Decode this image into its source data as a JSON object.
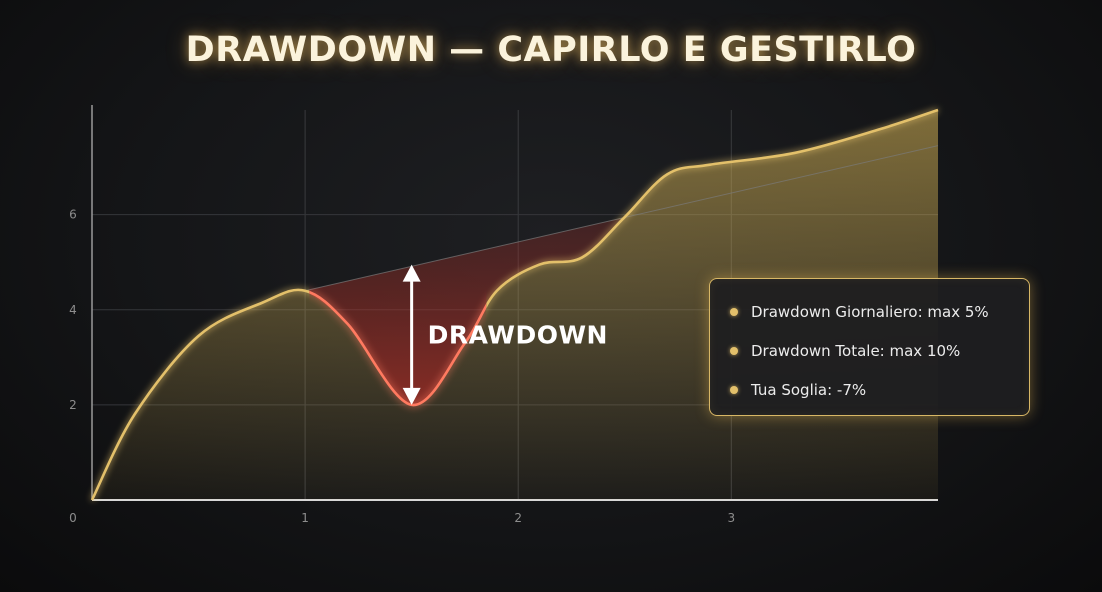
{
  "chart_data": {
    "type": "area",
    "title": "DRAWDOWN — CAPIRLO E GESTIRLO",
    "xlabel": "",
    "ylabel": "",
    "xlim": [
      0,
      3.97
    ],
    "ylim": [
      0,
      8.2
    ],
    "x_ticks": [
      "1",
      "2",
      "3"
    ],
    "y_ticks": [
      "0",
      "2",
      "4",
      "6"
    ],
    "grid": true,
    "series": [
      {
        "values_x": [
          0,
          0.2,
          0.5,
          0.8,
          1.0,
          1.2,
          1.5,
          1.75,
          1.9,
          2.1,
          2.3,
          2.5,
          2.7,
          2.9,
          3.3,
          3.7,
          3.97
        ],
        "values_y": [
          0,
          1.8,
          3.45,
          4.15,
          4.4,
          3.7,
          2.0,
          3.3,
          4.4,
          4.95,
          5.1,
          5.95,
          6.85,
          7.05,
          7.3,
          7.8,
          8.2
        ],
        "color": "#d9b860"
      }
    ],
    "trend_line": {
      "x": [
        1.0,
        3.97
      ],
      "y": [
        4.4,
        7.45
      ]
    },
    "annotation": {
      "label": "DRAWDOWN",
      "x": 1.5,
      "y_top": 4.95,
      "y_bottom": 2.0,
      "color": "#ff6a55"
    },
    "legend": {
      "position": "right",
      "items": [
        "Drawdown Giornaliero: max 5%",
        "Drawdown Totale: max 10%",
        "Tua Soglia: -7%"
      ]
    }
  }
}
